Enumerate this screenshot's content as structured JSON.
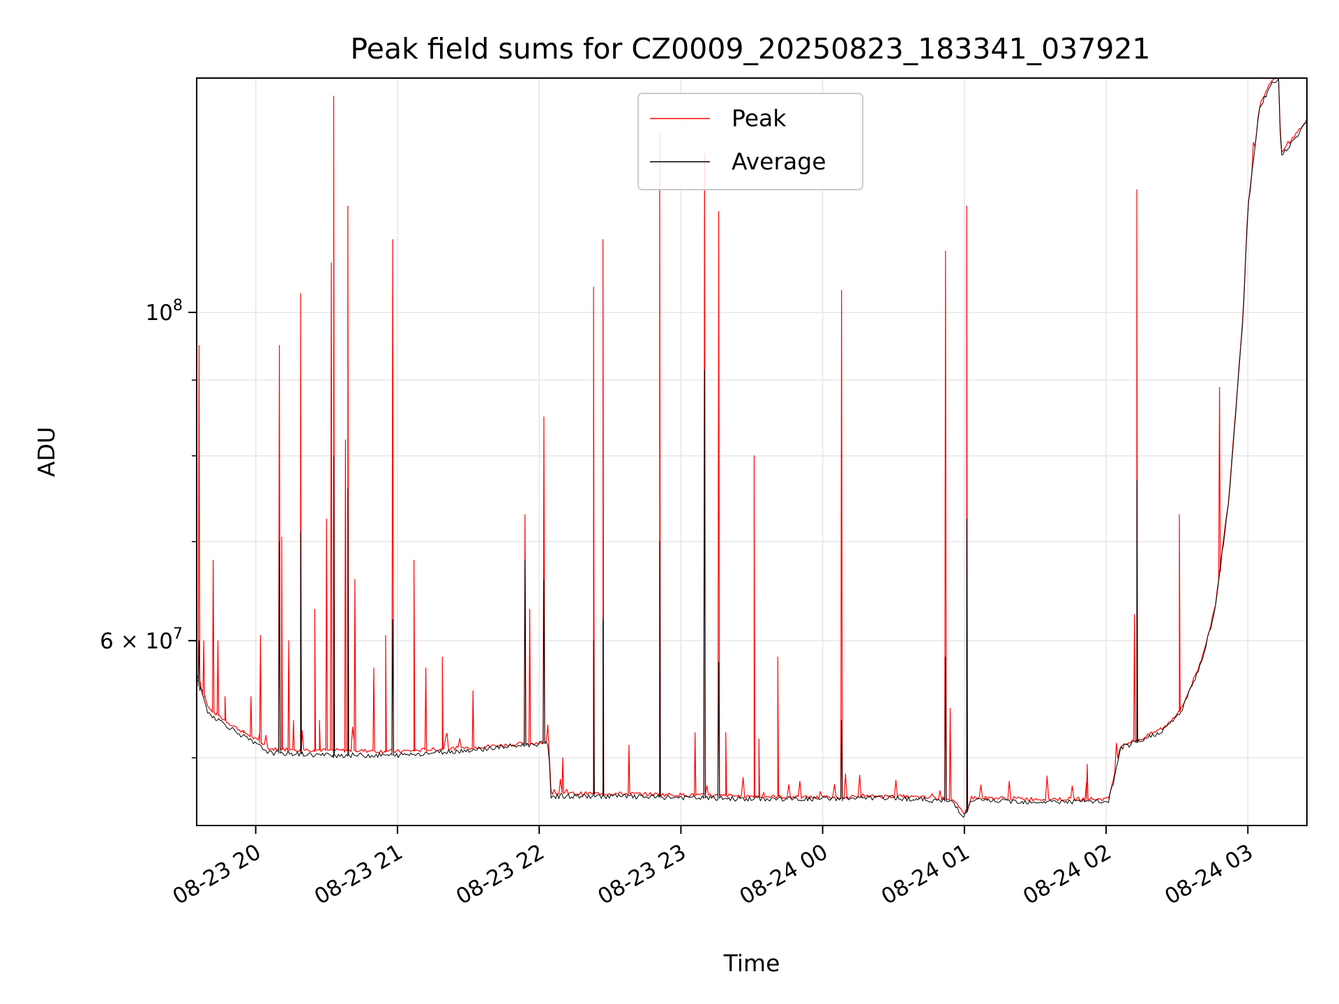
{
  "chart_data": {
    "type": "line",
    "title": "Peak field sums for CZ0009_20250823_183341_037921",
    "xlabel": "Time",
    "ylabel": "ADU",
    "y_scale": "log",
    "xlim": [
      "2025-08-23 19:35",
      "2025-08-24 03:25"
    ],
    "ylim": [
      45000000,
      144000000
    ],
    "x_ticks": [
      "08-23 20",
      "08-23 21",
      "08-23 22",
      "08-23 23",
      "08-24 00",
      "08-24 01",
      "08-24 02",
      "08-24 03"
    ],
    "x_tick_values": [
      "2025-08-23 20:00",
      "2025-08-23 21:00",
      "2025-08-23 22:00",
      "2025-08-23 23:00",
      "2025-08-24 00:00",
      "2025-08-24 01:00",
      "2025-08-24 02:00",
      "2025-08-24 03:00"
    ],
    "y_ticks_major": [
      {
        "label": "10",
        "exp": "8",
        "value": 100000000
      },
      {
        "label": "6 × 10",
        "exp": "7",
        "value": 60000000
      }
    ],
    "y_ticks_minor": [
      50000000,
      70000000,
      80000000,
      90000000
    ],
    "grid": true,
    "legend": "top-center",
    "series": [
      {
        "name": "Peak",
        "color": "#ff0000",
        "line_width": 1.2,
        "baseline": [
          [
            "2025-08-23 19:35",
            57000000
          ],
          [
            "2025-08-23 19:40",
            54000000
          ],
          [
            "2025-08-23 19:50",
            52600000
          ],
          [
            "2025-08-23 19:58",
            51700000
          ],
          [
            "2025-08-23 20:06",
            50700000
          ],
          [
            "2025-08-23 20:30",
            50600000
          ],
          [
            "2025-08-23 21:00",
            50500000
          ],
          [
            "2025-08-23 21:30",
            50800000
          ],
          [
            "2025-08-23 22:00",
            51200000
          ],
          [
            "2025-08-23 22:04",
            51200000
          ],
          [
            "2025-08-23 22:05",
            47300000
          ],
          [
            "2025-08-23 22:30",
            47300000
          ],
          [
            "2025-08-23 23:00",
            47200000
          ],
          [
            "2025-08-23 23:30",
            47100000
          ],
          [
            "2025-08-24 00:00",
            47000000
          ],
          [
            "2025-08-24 00:30",
            47100000
          ],
          [
            "2025-08-24 00:55",
            46900000
          ],
          [
            "2025-08-24 01:00",
            45700000
          ],
          [
            "2025-08-24 01:03",
            47000000
          ],
          [
            "2025-08-24 01:30",
            46900000
          ],
          [
            "2025-08-24 02:01",
            46900000
          ],
          [
            "2025-08-24 02:04",
            49000000
          ],
          [
            "2025-08-24 02:06",
            51000000
          ],
          [
            "2025-08-24 02:15",
            51500000
          ],
          [
            "2025-08-24 02:25",
            52500000
          ],
          [
            "2025-08-24 02:32",
            54000000
          ],
          [
            "2025-08-24 02:40",
            58000000
          ],
          [
            "2025-08-24 02:46",
            63000000
          ],
          [
            "2025-08-24 02:52",
            75000000
          ],
          [
            "2025-08-24 02:58",
            100000000
          ],
          [
            "2025-08-24 03:00",
            118000000
          ],
          [
            "2025-08-24 03:05",
            138000000
          ],
          [
            "2025-08-24 03:08",
            141000000
          ],
          [
            "2025-08-24 03:10",
            143500000
          ],
          [
            "2025-08-24 03:13",
            144000000
          ],
          [
            "2025-08-24 03:14",
            128000000
          ],
          [
            "2025-08-24 03:25",
            135000000
          ]
        ],
        "spikes": [
          [
            "2025-08-23 19:36",
            95000000
          ],
          [
            "2025-08-23 19:38",
            60000000
          ],
          [
            "2025-08-23 19:42",
            68000000
          ],
          [
            "2025-08-23 19:44",
            60000000
          ],
          [
            "2025-08-23 19:47",
            55000000
          ],
          [
            "2025-08-23 19:55",
            52000000
          ],
          [
            "2025-08-23 19:58",
            55000000
          ],
          [
            "2025-08-23 20:02",
            60500000
          ],
          [
            "2025-08-23 20:10",
            95000000
          ],
          [
            "2025-08-23 20:11",
            70500000
          ],
          [
            "2025-08-23 20:14",
            60000000
          ],
          [
            "2025-08-23 20:16",
            53000000
          ],
          [
            "2025-08-23 20:19",
            103000000
          ],
          [
            "2025-08-23 20:25",
            63000000
          ],
          [
            "2025-08-23 20:27",
            53000000
          ],
          [
            "2025-08-23 20:30",
            72500000
          ],
          [
            "2025-08-23 20:32",
            108000000
          ],
          [
            "2025-08-23 20:33",
            140000000
          ],
          [
            "2025-08-23 20:38",
            82000000
          ],
          [
            "2025-08-23 20:39",
            118000000
          ],
          [
            "2025-08-23 20:42",
            66000000
          ],
          [
            "2025-08-23 20:50",
            57500000
          ],
          [
            "2025-08-23 20:55",
            60500000
          ],
          [
            "2025-08-23 20:58",
            112000000
          ],
          [
            "2025-08-23 21:07",
            68000000
          ],
          [
            "2025-08-23 21:12",
            57500000
          ],
          [
            "2025-08-23 21:19",
            58500000
          ],
          [
            "2025-08-23 21:32",
            55500000
          ],
          [
            "2025-08-23 21:54",
            73000000
          ],
          [
            "2025-08-23 21:56",
            63000000
          ],
          [
            "2025-08-23 22:02",
            85000000
          ],
          [
            "2025-08-23 22:10",
            50000000
          ],
          [
            "2025-08-23 22:23",
            104000000
          ],
          [
            "2025-08-23 22:27",
            112000000
          ],
          [
            "2025-08-23 22:38",
            51000000
          ],
          [
            "2025-08-23 22:51",
            132000000
          ],
          [
            "2025-08-23 23:06",
            52000000
          ],
          [
            "2025-08-23 23:10",
            128000000
          ],
          [
            "2025-08-23 23:16",
            117000000
          ],
          [
            "2025-08-23 23:19",
            52000000
          ],
          [
            "2025-08-23 23:31",
            80000000
          ],
          [
            "2025-08-23 23:33",
            51500000
          ],
          [
            "2025-08-23 23:41",
            58500000
          ],
          [
            "2025-08-24 00:08",
            103500000
          ],
          [
            "2025-08-24 00:52",
            110000000
          ],
          [
            "2025-08-24 00:54",
            54000000
          ],
          [
            "2025-08-24 01:01",
            118000000
          ],
          [
            "2025-08-24 01:52",
            49500000
          ],
          [
            "2025-08-24 02:12",
            62500000
          ],
          [
            "2025-08-24 02:13",
            121000000
          ],
          [
            "2025-08-24 02:31",
            73000000
          ],
          [
            "2025-08-24 02:48",
            89000000
          ]
        ]
      },
      {
        "name": "Average",
        "color": "#000000",
        "line_width": 1.0,
        "baseline": [
          [
            "2025-08-23 19:35",
            56500000
          ],
          [
            "2025-08-23 19:40",
            53600000
          ],
          [
            "2025-08-23 19:50",
            52300000
          ],
          [
            "2025-08-23 19:58",
            51300000
          ],
          [
            "2025-08-23 20:06",
            50400000
          ],
          [
            "2025-08-23 20:30",
            50200000
          ],
          [
            "2025-08-23 21:00",
            50200000
          ],
          [
            "2025-08-23 21:30",
            50600000
          ],
          [
            "2025-08-23 22:00",
            51100000
          ],
          [
            "2025-08-23 22:04",
            51100000
          ],
          [
            "2025-08-23 22:05",
            47100000
          ],
          [
            "2025-08-23 22:30",
            47100000
          ],
          [
            "2025-08-23 23:00",
            47000000
          ],
          [
            "2025-08-23 23:30",
            46900000
          ],
          [
            "2025-08-24 00:00",
            46900000
          ],
          [
            "2025-08-24 00:30",
            47000000
          ],
          [
            "2025-08-24 00:55",
            46700000
          ],
          [
            "2025-08-24 01:00",
            45600000
          ],
          [
            "2025-08-24 01:03",
            46800000
          ],
          [
            "2025-08-24 01:30",
            46700000
          ],
          [
            "2025-08-24 02:01",
            46700000
          ],
          [
            "2025-08-24 02:04",
            48800000
          ],
          [
            "2025-08-24 02:06",
            50800000
          ],
          [
            "2025-08-24 02:15",
            51300000
          ],
          [
            "2025-08-24 02:25",
            52300000
          ],
          [
            "2025-08-24 02:32",
            53800000
          ],
          [
            "2025-08-24 02:40",
            57800000
          ],
          [
            "2025-08-24 02:46",
            62800000
          ],
          [
            "2025-08-24 02:52",
            74800000
          ],
          [
            "2025-08-24 02:58",
            99500000
          ],
          [
            "2025-08-24 03:00",
            117500000
          ],
          [
            "2025-08-24 03:05",
            137500000
          ],
          [
            "2025-08-24 03:08",
            140500000
          ],
          [
            "2025-08-24 03:10",
            143000000
          ],
          [
            "2025-08-24 03:13",
            143500000
          ],
          [
            "2025-08-24 03:14",
            127500000
          ],
          [
            "2025-08-24 03:25",
            134500000
          ]
        ],
        "spikes": [
          [
            "2025-08-23 19:36",
            60000000
          ],
          [
            "2025-08-23 20:10",
            70000000
          ],
          [
            "2025-08-23 20:19",
            71000000
          ],
          [
            "2025-08-23 20:33",
            80000000
          ],
          [
            "2025-08-23 20:39",
            76000000
          ],
          [
            "2025-08-23 20:58",
            62000000
          ],
          [
            "2025-08-23 21:54",
            68000000
          ],
          [
            "2025-08-23 22:02",
            66000000
          ],
          [
            "2025-08-23 22:23",
            60000000
          ],
          [
            "2025-08-23 22:27",
            62000000
          ],
          [
            "2025-08-23 22:51",
            70000000
          ],
          [
            "2025-08-23 23:10",
            91500000
          ],
          [
            "2025-08-23 23:16",
            58000000
          ],
          [
            "2025-08-24 00:08",
            53000000
          ],
          [
            "2025-08-24 00:52",
            58500000
          ],
          [
            "2025-08-24 01:01",
            72500000
          ],
          [
            "2025-08-24 02:13",
            77000000
          ]
        ]
      }
    ]
  }
}
